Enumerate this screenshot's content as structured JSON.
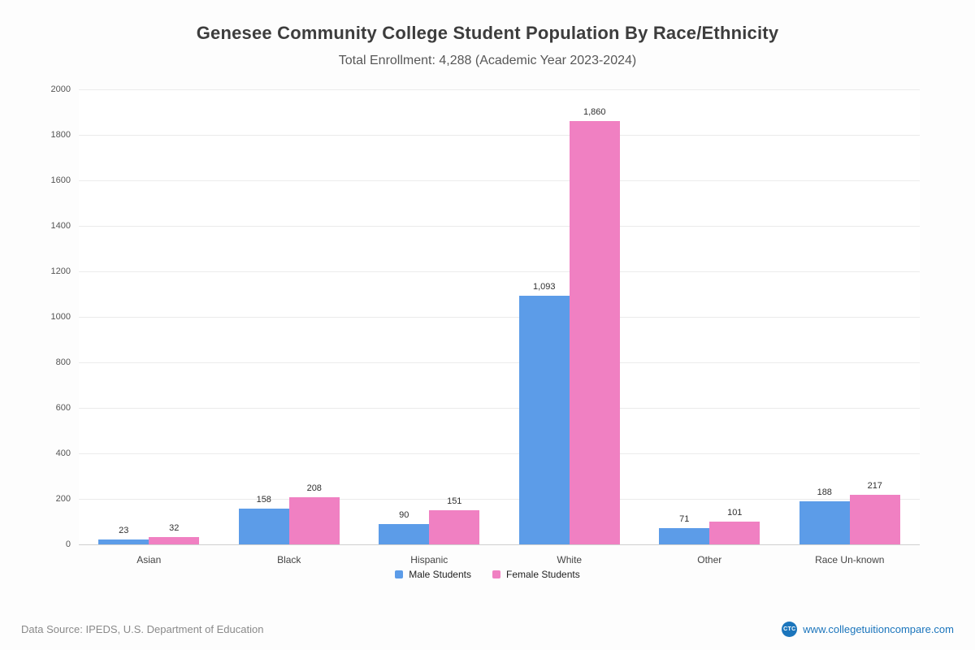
{
  "chart_data": {
    "type": "bar",
    "title": "Genesee Community College Student Population By Race/Ethnicity",
    "subtitle": "Total Enrollment: 4,288 (Academic Year 2023-2024)",
    "categories": [
      "Asian",
      "Black",
      "Hispanic",
      "White",
      "Other",
      "Race Un-known"
    ],
    "series": [
      {
        "name": "Male Students",
        "color": "#5C9CE8",
        "values": [
          23,
          158,
          90,
          1093,
          71,
          188
        ]
      },
      {
        "name": "Female Students",
        "color": "#F080C2",
        "values": [
          32,
          208,
          151,
          1860,
          101,
          217
        ]
      }
    ],
    "ylim": [
      0,
      2000
    ],
    "ytick_step": 200,
    "grid": true,
    "legend_position": "bottom"
  },
  "footer": {
    "source": "Data Source: IPEDS, U.S. Department of Education",
    "website": "www.collegetuitioncompare.com",
    "logo_text": "CTC",
    "link_color": "#1B75BC"
  }
}
